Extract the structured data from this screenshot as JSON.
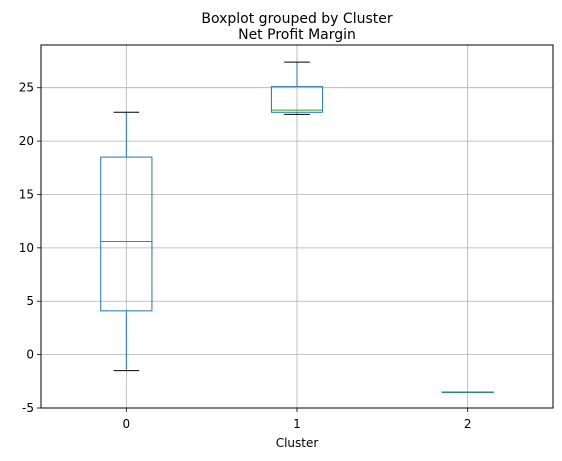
{
  "chart_data": {
    "type": "box",
    "suptitle": "Boxplot grouped by Cluster",
    "title": "Net Profit Margin",
    "xlabel": "Cluster",
    "ylabel": "",
    "categories": [
      "0",
      "1",
      "2"
    ],
    "ylim": [
      -5,
      29
    ],
    "yticks": [
      -5,
      0,
      5,
      10,
      15,
      20,
      25
    ],
    "grid": true,
    "colors": {
      "box": "#1f77b4",
      "median": "#2ca02c",
      "whisker_cap": "#000000",
      "grid": "#b0b0b0"
    },
    "boxes": [
      {
        "category": "0",
        "whisker_low": -1.5,
        "q1": 4.1,
        "median": 10.6,
        "q3": 18.5,
        "whisker_high": 22.7
      },
      {
        "category": "1",
        "whisker_low": 22.5,
        "q1": 22.7,
        "median": 22.9,
        "q3": 25.1,
        "whisker_high": 27.4
      },
      {
        "category": "2",
        "whisker_low": -3.5,
        "q1": -3.5,
        "median": -3.5,
        "q3": -3.5,
        "whisker_high": -3.5
      }
    ]
  }
}
